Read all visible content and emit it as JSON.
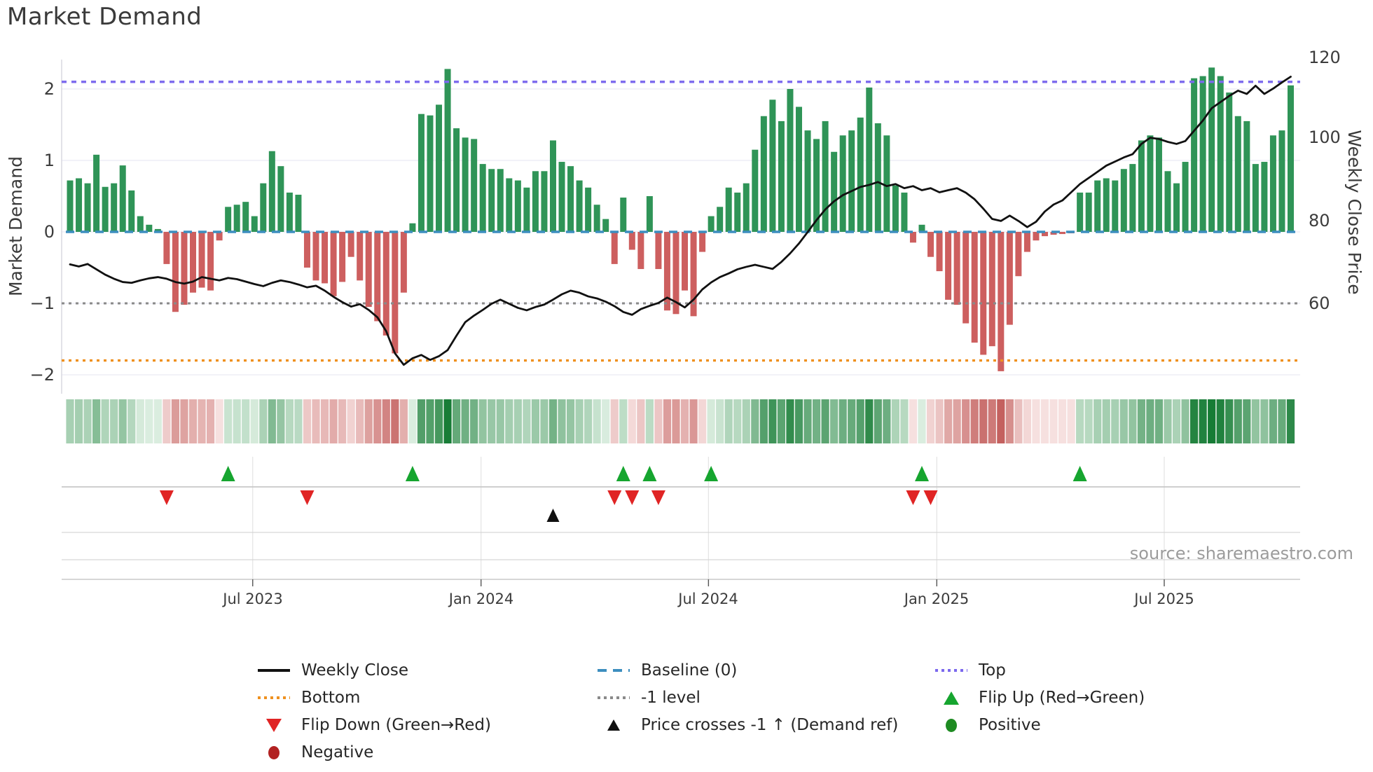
{
  "title": "Market Demand",
  "source_text": "source: sharemaestro.com",
  "axes": {
    "y_left_label": "Market Demand",
    "y_right_label": "Weekly Close Price",
    "y_left_tick_labels": [
      "2",
      "1",
      "0",
      "−1",
      "−2"
    ],
    "y_right_tick_labels": [
      "120",
      "100",
      "80",
      "60"
    ],
    "x_tick_labels": [
      "Jul 2023",
      "Jan 2024",
      "Jul 2024",
      "Jan 2025",
      "Jul 2025"
    ]
  },
  "colors": {
    "positive_bar": "#2f9457",
    "negative_bar": "#cd5f5f",
    "price_line": "#111111",
    "baseline_dashed": "#3d8ebf",
    "top_dotted": "#7b68ee",
    "bottom_dotted": "#ef9120",
    "minus1_dotted": "#8a8a8a",
    "flip_up_marker": "#16a52f",
    "flip_down_marker": "#e02424",
    "price_cross_marker": "#111111",
    "positive_dot": "#1e8b22",
    "negative_dot": "#b22222"
  },
  "legend": {
    "items": [
      {
        "label": "Weekly Close",
        "swatch": "line-solid-black"
      },
      {
        "label": "Baseline (0)",
        "swatch": "line-dashed-blue"
      },
      {
        "label": "Top",
        "swatch": "line-dotted-purple"
      },
      {
        "label": "Bottom",
        "swatch": "line-dotted-orange"
      },
      {
        "label": "-1 level",
        "swatch": "line-dotted-gray"
      },
      {
        "label": "Flip Up (Red→Green)",
        "swatch": "triangle-up-green"
      },
      {
        "label": "Flip Down (Green→Red)",
        "swatch": "triangle-down-red"
      },
      {
        "label": "Price crosses -1 ↑ (Demand ref)",
        "swatch": "triangle-up-black"
      },
      {
        "label": "Positive",
        "swatch": "dot-green"
      },
      {
        "label": "Negative",
        "swatch": "dot-darkred"
      }
    ]
  },
  "chart_data": {
    "type": "bar+line+heatmap",
    "title": "Market Demand",
    "x_unit": "week",
    "x_tick_labels": [
      "Jul 2023",
      "Jan 2024",
      "Jul 2024",
      "Jan 2025",
      "Jul 2025"
    ],
    "x_tick_weeks": [
      20.8,
      46.8,
      72.7,
      98.7,
      124.6
    ],
    "y_left_ticks": [
      2,
      1,
      0,
      -1,
      -2
    ],
    "y_left_range": [
      -2.3,
      2.42
    ],
    "y_right_ticks": [
      120,
      100,
      80,
      60
    ],
    "right_axis_alignment": "price 60 aligns with demand -1; 20 price units per 1.146 demand units",
    "ref_levels": {
      "top": 2.1,
      "baseline": 0,
      "minus1": -1,
      "bottom": -1.8
    },
    "demand": [
      0.72,
      0.75,
      0.68,
      1.08,
      0.63,
      0.68,
      0.93,
      0.58,
      0.22,
      0.1,
      0.04,
      -0.45,
      -1.12,
      -1.02,
      -0.85,
      -0.78,
      -0.82,
      -0.12,
      0.35,
      0.38,
      0.42,
      0.22,
      0.68,
      1.13,
      0.92,
      0.55,
      0.52,
      -0.5,
      -0.68,
      -0.72,
      -0.9,
      -0.7,
      -0.35,
      -0.68,
      -1.05,
      -1.25,
      -1.45,
      -1.7,
      -0.85,
      0.12,
      1.65,
      1.63,
      1.78,
      2.28,
      1.45,
      1.32,
      1.3,
      0.95,
      0.88,
      0.88,
      0.75,
      0.72,
      0.62,
      0.85,
      0.85,
      1.28,
      0.98,
      0.92,
      0.72,
      0.62,
      0.38,
      0.18,
      -0.45,
      0.48,
      -0.25,
      -0.52,
      0.5,
      -0.52,
      -1.1,
      -1.15,
      -0.82,
      -1.18,
      -0.28,
      0.22,
      0.35,
      0.62,
      0.55,
      0.68,
      1.15,
      1.62,
      1.85,
      1.55,
      2.0,
      1.75,
      1.42,
      1.3,
      1.55,
      1.12,
      1.35,
      1.42,
      1.6,
      2.02,
      1.52,
      1.35,
      0.65,
      0.55,
      -0.15,
      0.1,
      -0.35,
      -0.55,
      -0.95,
      -1.02,
      -1.28,
      -1.55,
      -1.72,
      -1.6,
      -1.95,
      -1.3,
      -0.62,
      -0.28,
      -0.12,
      -0.06,
      -0.04,
      -0.03,
      -0.02,
      0.55,
      0.55,
      0.72,
      0.75,
      0.72,
      0.88,
      0.95,
      1.28,
      1.35,
      1.32,
      0.85,
      0.68,
      0.98,
      2.15,
      2.18,
      2.3,
      2.18,
      1.95,
      1.62,
      1.55,
      0.95,
      0.98,
      1.35,
      1.42,
      2.05
    ],
    "price": [
      69.5,
      69.0,
      69.6,
      68.3,
      67.0,
      66.0,
      65.2,
      65.0,
      65.6,
      66.1,
      66.4,
      66.0,
      65.2,
      64.8,
      65.3,
      66.4,
      66.0,
      65.6,
      66.2,
      65.9,
      65.3,
      64.7,
      64.2,
      65.0,
      65.6,
      65.2,
      64.6,
      63.9,
      64.3,
      63.1,
      61.6,
      60.3,
      59.2,
      59.8,
      58.4,
      56.6,
      53.2,
      47.8,
      45.0,
      46.6,
      47.4,
      46.2,
      47.1,
      48.6,
      52.1,
      55.4,
      57.0,
      58.4,
      59.9,
      60.9,
      59.9,
      58.9,
      58.3,
      59.1,
      59.7,
      60.9,
      62.2,
      63.1,
      62.6,
      61.7,
      61.2,
      60.4,
      59.3,
      57.9,
      57.2,
      58.6,
      59.4,
      60.1,
      61.4,
      60.3,
      59.0,
      60.9,
      63.4,
      65.1,
      66.4,
      67.3,
      68.3,
      68.9,
      69.4,
      68.9,
      68.4,
      70.1,
      72.2,
      74.6,
      77.4,
      80.3,
      82.9,
      84.9,
      86.4,
      87.4,
      88.4,
      88.9,
      89.6,
      88.6,
      89.1,
      88.1,
      88.6,
      87.6,
      88.1,
      87.1,
      87.6,
      88.1,
      87.0,
      85.4,
      83.1,
      80.6,
      80.1,
      81.4,
      80.1,
      78.6,
      79.9,
      82.4,
      84.1,
      85.1,
      87.1,
      89.1,
      90.6,
      92.1,
      93.6,
      94.6,
      95.6,
      96.4,
      98.9,
      100.4,
      100.1,
      99.4,
      98.9,
      99.6,
      102.1,
      104.6,
      107.6,
      109.1,
      110.6,
      111.9,
      111.1,
      113.1,
      111.1,
      112.4,
      113.9,
      115.3
    ],
    "flip_down_weeks": [
      11,
      27,
      62,
      64,
      67,
      96,
      98
    ],
    "flip_up_weeks": [
      18,
      39,
      63,
      66,
      73,
      97,
      115
    ],
    "price_cross_week": 55,
    "series": [
      {
        "name": "Market Demand",
        "type": "bar",
        "axis": "left"
      },
      {
        "name": "Weekly Close",
        "type": "line",
        "axis": "right"
      },
      {
        "name": "Demand heatmap",
        "type": "heatmap",
        "derived_from": "demand"
      }
    ]
  }
}
